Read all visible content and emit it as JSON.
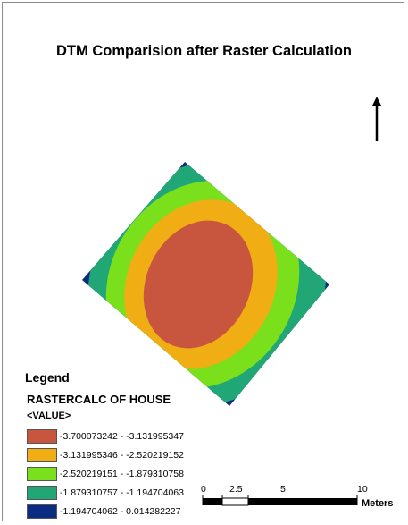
{
  "title": "DTM Comparision after Raster Calculation",
  "legend": {
    "heading": "Legend",
    "layer": "RASTERCALC OF HOUSE",
    "field": "<VALUE>",
    "classes": [
      {
        "label": "-3.700073242 - -3.131995347",
        "color": "#c8553d"
      },
      {
        "label": "-3.131995346 - -2.520219152",
        "color": "#f0ad14"
      },
      {
        "label": "-2.520219151 - -1.879310758",
        "color": "#7be01c"
      },
      {
        "label": "-1.879310757 - -1.194704063",
        "color": "#21a776"
      },
      {
        "label": "-1.194704062 - 0.014282227",
        "color": "#0a2d82"
      }
    ]
  },
  "scale": {
    "ticks": [
      "0",
      "2.5",
      "5",
      "10"
    ],
    "unit": "Meters"
  },
  "north_arrow": "north-arrow-icon"
}
